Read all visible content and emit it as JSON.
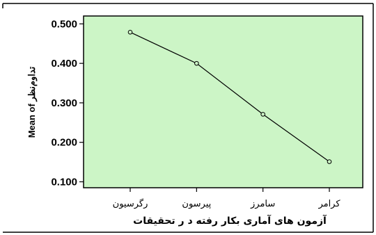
{
  "chart_data": {
    "type": "line",
    "categories": [
      "رگرسیون",
      "پیرسون",
      "سامرز",
      "کرامر"
    ],
    "values": [
      0.479,
      0.4,
      0.271,
      0.151
    ],
    "yticks": [
      "0.100",
      "0.200",
      "0.300",
      "0.400",
      "0.500"
    ],
    "ylim": [
      0.085,
      0.52
    ],
    "xlabel": "آزمون های آماری بکار رفته د ر تحقیقات",
    "ylabel": "Mean of تداوم‌نظر",
    "grid": false,
    "colors": {
      "plot_bg": "#ccf5c6",
      "line": "#000000",
      "frame": "#000000"
    }
  }
}
